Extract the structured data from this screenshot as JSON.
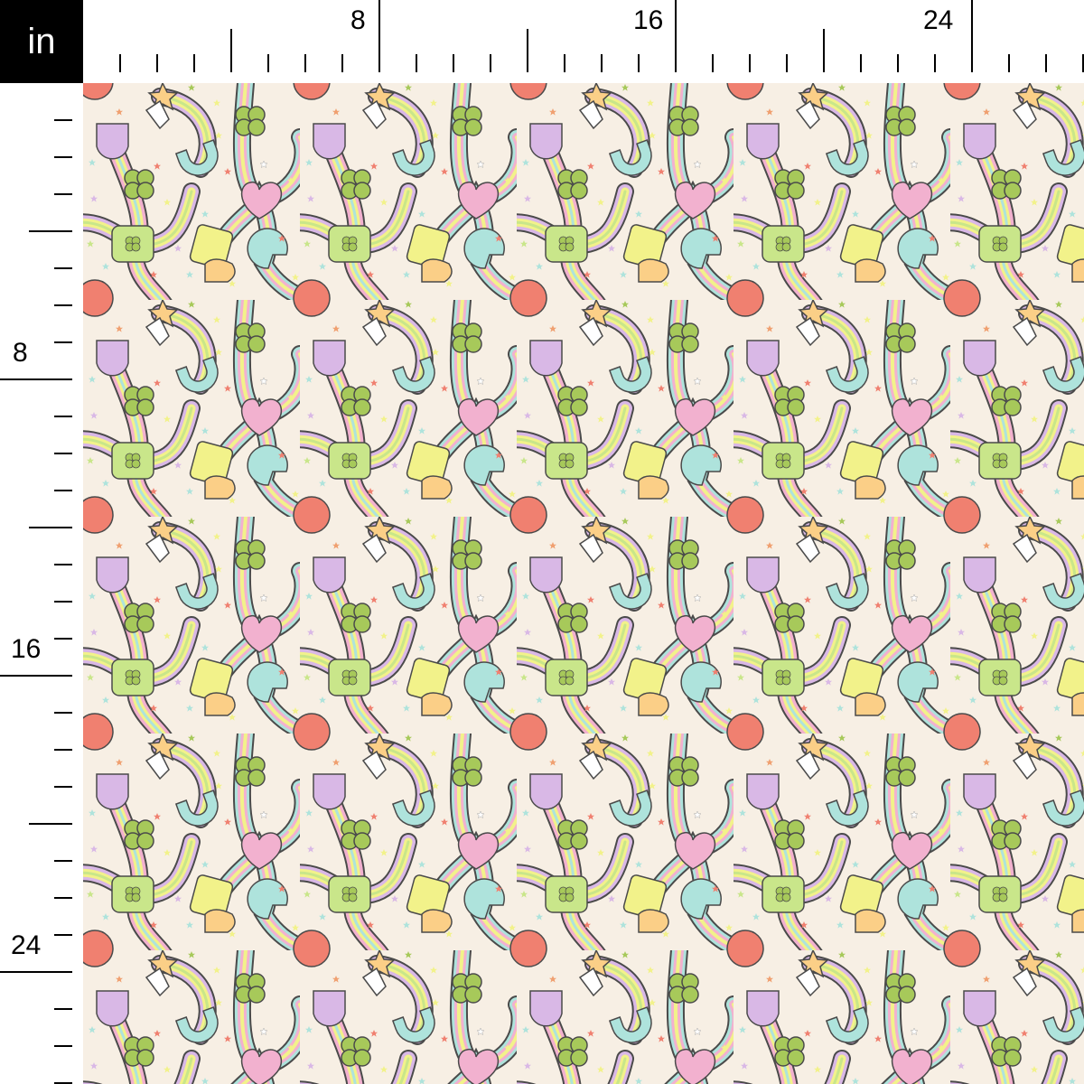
{
  "ruler": {
    "unit": "in",
    "top_labels": [
      "8",
      "16",
      "24"
    ],
    "left_labels": [
      "8",
      "16",
      "24"
    ]
  },
  "fabric": {
    "background": "#f7efe4",
    "colors": {
      "red": "#f08070",
      "pink": "#f2b1cf",
      "purple": "#d9b8e6",
      "yellow": "#f2f28a",
      "orange": "#fbcf87",
      "green": "#a7c95a",
      "lime": "#c9e68a",
      "cyan": "#aee3dc",
      "outline": "#4a4a4a"
    }
  }
}
